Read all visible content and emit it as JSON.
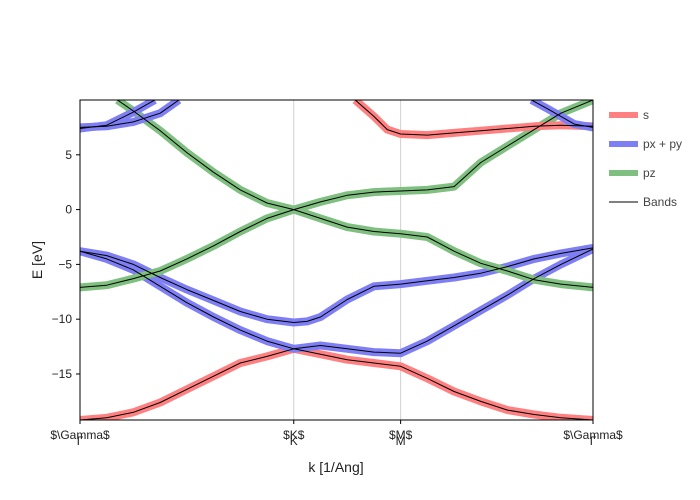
{
  "chart_data": {
    "type": "line",
    "title": "",
    "xlabel": "k [1/Ang]",
    "ylabel": "E [eV]",
    "xlim": [
      0,
      1.92
    ],
    "ylim": [
      -19.2,
      10.0
    ],
    "grid": "vertical lines at high-symmetry points",
    "legend_position": "right",
    "x_ticks": [
      {
        "value": 0.0,
        "label": "$\\Gamma$"
      },
      {
        "value": 0.8,
        "label": "$K$"
      },
      {
        "value": 1.2,
        "label": "$M$"
      },
      {
        "value": 1.92,
        "label": "$\\Gamma$"
      }
    ],
    "x_tick_glyphs": [
      "Γ",
      "K",
      "M",
      "Γ"
    ],
    "y_ticks": [
      5,
      0,
      -5,
      -10,
      -15
    ],
    "legend": [
      {
        "label": "s",
        "color": "#ff8080",
        "style": "thick"
      },
      {
        "label": "px + py",
        "color": "#7f7ff5",
        "style": "thick"
      },
      {
        "label": "pz",
        "color": "#7fbf7f",
        "style": "thick"
      },
      {
        "label": "Bands",
        "color": "#000000",
        "style": "thin"
      }
    ],
    "series": [
      {
        "name": "Bands",
        "orbital": "s",
        "x": [
          0,
          0.1,
          0.2,
          0.3,
          0.4,
          0.5,
          0.6,
          0.7,
          0.8,
          0.9,
          1.0,
          1.1,
          1.2,
          1.3,
          1.4,
          1.5,
          1.6,
          1.7,
          1.8,
          1.92
        ],
        "y": [
          -19.2,
          -19.0,
          -18.5,
          -17.6,
          -16.4,
          -15.2,
          -14.0,
          -13.4,
          -12.7,
          -13.2,
          -13.7,
          -14.0,
          -14.3,
          -15.4,
          -16.6,
          -17.5,
          -18.3,
          -18.7,
          -19.0,
          -19.2
        ]
      },
      {
        "name": "Bands",
        "orbital": "pxpy",
        "x": [
          0,
          0.1,
          0.2,
          0.3,
          0.4,
          0.5,
          0.6,
          0.7,
          0.8,
          0.85,
          0.9,
          1.0,
          1.1,
          1.2,
          1.3,
          1.4,
          1.5,
          1.6,
          1.7,
          1.8,
          1.92
        ],
        "y": [
          -3.8,
          -4.2,
          -5.0,
          -6.2,
          -7.3,
          -8.3,
          -9.3,
          -10.0,
          -10.3,
          -10.2,
          -9.8,
          -8.2,
          -7.0,
          -6.8,
          -6.5,
          -6.2,
          -5.8,
          -5.2,
          -4.5,
          -4.0,
          -3.5
        ]
      },
      {
        "name": "Bands",
        "orbital": "pxpy",
        "x": [
          0,
          0.1,
          0.2,
          0.3,
          0.4,
          0.5,
          0.6,
          0.7,
          0.8,
          0.9,
          1.0,
          1.1,
          1.2,
          1.3,
          1.4,
          1.5,
          1.6,
          1.7,
          1.8,
          1.92
        ],
        "y": [
          -3.8,
          -4.5,
          -5.5,
          -7.0,
          -8.5,
          -9.8,
          -11.0,
          -12.0,
          -12.7,
          -12.4,
          -12.7,
          -13.0,
          -13.1,
          -12.0,
          -10.6,
          -9.2,
          -7.8,
          -6.3,
          -5.0,
          -3.6
        ]
      },
      {
        "name": "Bands",
        "orbital": "pz",
        "x": [
          0,
          0.1,
          0.2,
          0.3,
          0.4,
          0.5,
          0.6,
          0.7,
          0.8,
          0.9,
          1.0,
          1.1,
          1.2,
          1.3,
          1.4,
          1.5,
          1.6,
          1.7,
          1.8,
          1.92
        ],
        "y": [
          -7.1,
          -6.9,
          -6.3,
          -5.6,
          -4.5,
          -3.3,
          -2.0,
          -0.8,
          0.0,
          0.7,
          1.3,
          1.6,
          1.7,
          1.8,
          2.1,
          4.3,
          5.8,
          7.3,
          8.8,
          10.0
        ]
      },
      {
        "name": "Bands",
        "orbital": "pz",
        "x": [
          0.14,
          0.2,
          0.3,
          0.4,
          0.5,
          0.6,
          0.7,
          0.8,
          0.9,
          1.0,
          1.1,
          1.2,
          1.3,
          1.4,
          1.5,
          1.6,
          1.7,
          1.8,
          1.92
        ],
        "y": [
          10.0,
          9.0,
          7.2,
          5.2,
          3.4,
          1.8,
          0.6,
          0.0,
          -0.8,
          -1.6,
          -2.0,
          -2.2,
          -2.5,
          -3.8,
          -4.9,
          -5.6,
          -6.4,
          -6.8,
          -7.1
        ]
      },
      {
        "name": "Bands",
        "orbital": "pxpy",
        "x": [
          0,
          0.1,
          0.2,
          0.3,
          0.37
        ],
        "y": [
          7.5,
          7.6,
          8.0,
          8.8,
          10.0
        ]
      },
      {
        "name": "Bands",
        "orbital": "pxpy",
        "x": [
          0,
          0.1,
          0.2,
          0.28
        ],
        "y": [
          7.4,
          7.7,
          8.9,
          10.0
        ]
      },
      {
        "name": "Bands",
        "orbital": "s",
        "x": [
          1.03,
          1.1,
          1.15,
          1.2,
          1.3,
          1.4,
          1.5,
          1.6,
          1.7,
          1.8,
          1.92
        ],
        "y": [
          10.0,
          8.5,
          7.3,
          6.9,
          6.8,
          7.0,
          7.2,
          7.4,
          7.6,
          7.7,
          7.6
        ]
      },
      {
        "name": "Bands",
        "orbital": "pxpy",
        "x": [
          1.69,
          1.75,
          1.8,
          1.85,
          1.92
        ],
        "y": [
          10.0,
          9.2,
          8.5,
          7.8,
          7.5
        ]
      }
    ]
  }
}
